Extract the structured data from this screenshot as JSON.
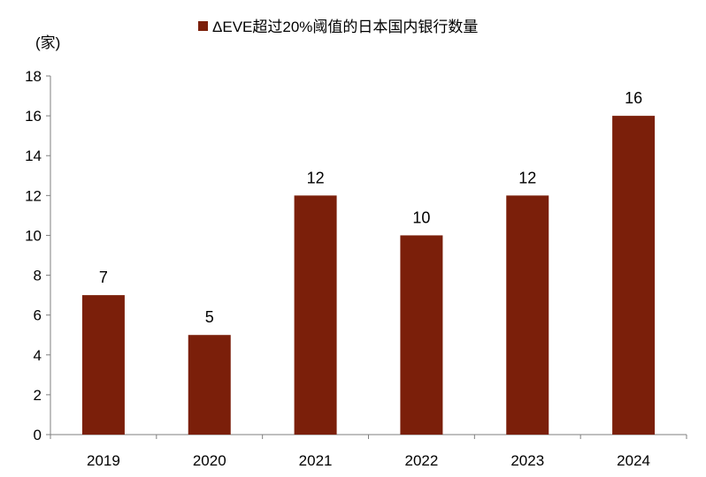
{
  "chart_data": {
    "type": "bar",
    "title": "",
    "unit": "(家)",
    "xlabel": "",
    "ylabel": "",
    "categories": [
      "2019",
      "2020",
      "2021",
      "2022",
      "2023",
      "2024"
    ],
    "series": [
      {
        "name": "ΔEVE超过20%阈值的日本国内银行数量",
        "values": [
          7,
          5,
          12,
          10,
          12,
          16
        ],
        "color": "#7B1F0A"
      }
    ],
    "ylim": [
      0,
      18
    ],
    "yticks": [
      0,
      2,
      4,
      6,
      8,
      10,
      12,
      14,
      16,
      18
    ],
    "grid": false,
    "legend_position": "top-center",
    "data_labels": true
  }
}
